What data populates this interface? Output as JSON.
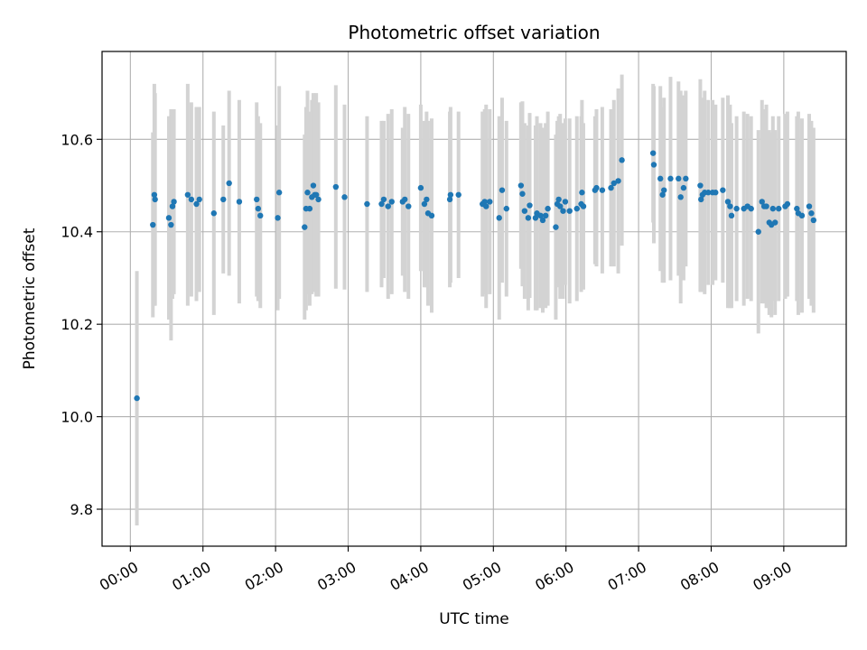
{
  "chart_data": {
    "type": "scatter",
    "title": "Photometric offset variation",
    "xlabel": "UTC time",
    "ylabel": "Photometric offset",
    "x_unit": "hours",
    "xlim": [
      -0.39,
      9.86
    ],
    "ylim": [
      9.72,
      10.79
    ],
    "grid": true,
    "x_ticks": [
      0,
      1,
      2,
      3,
      4,
      5,
      6,
      7,
      8,
      9
    ],
    "x_tick_labels": [
      "00:00",
      "01:00",
      "02:00",
      "03:00",
      "04:00",
      "05:00",
      "06:00",
      "07:00",
      "08:00",
      "09:00"
    ],
    "y_ticks": [
      9.8,
      10.0,
      10.2,
      10.4,
      10.6
    ],
    "y_tick_labels": [
      "9.8",
      "10.0",
      "10.2",
      "10.4",
      "10.6"
    ],
    "point_color": "#1f77b4",
    "errorbar_color": "#d3d3d3",
    "series": [
      {
        "name": "offset",
        "x": [
          0.09,
          0.31,
          0.33,
          0.34,
          0.53,
          0.56,
          0.58,
          0.6,
          0.79,
          0.84,
          0.91,
          0.95,
          1.15,
          1.28,
          1.36,
          1.5,
          1.74,
          1.76,
          1.79,
          2.03,
          2.05,
          2.4,
          2.42,
          2.44,
          2.47,
          2.5,
          2.52,
          2.54,
          2.56,
          2.59,
          2.83,
          2.95,
          3.26,
          3.46,
          3.49,
          3.55,
          3.6,
          3.75,
          3.78,
          3.83,
          4.0,
          4.05,
          4.08,
          4.1,
          4.15,
          4.4,
          4.41,
          4.52,
          4.85,
          4.88,
          4.9,
          4.95,
          5.08,
          5.12,
          5.18,
          5.38,
          5.4,
          5.43,
          5.48,
          5.5,
          5.58,
          5.6,
          5.65,
          5.68,
          5.72,
          5.75,
          5.86,
          5.88,
          5.9,
          5.92,
          5.96,
          5.99,
          6.05,
          6.15,
          6.21,
          6.22,
          6.24,
          6.4,
          6.42,
          6.5,
          6.62,
          6.66,
          6.72,
          6.77,
          7.2,
          7.21,
          7.3,
          7.33,
          7.35,
          7.44,
          7.55,
          7.58,
          7.62,
          7.65,
          7.85,
          7.86,
          7.88,
          7.91,
          7.96,
          8.02,
          8.06,
          8.16,
          8.23,
          8.26,
          8.28,
          8.35,
          8.45,
          8.5,
          8.55,
          8.65,
          8.7,
          8.73,
          8.76,
          8.8,
          8.83,
          8.85,
          8.88,
          8.93,
          9.02,
          9.05,
          9.18,
          9.2,
          9.25,
          9.35,
          9.38,
          9.41
        ],
        "y": [
          10.04,
          10.415,
          10.48,
          10.47,
          10.43,
          10.415,
          10.455,
          10.465,
          10.48,
          10.47,
          10.46,
          10.47,
          10.44,
          10.47,
          10.505,
          10.465,
          10.47,
          10.45,
          10.435,
          10.43,
          10.485,
          10.41,
          10.45,
          10.485,
          10.45,
          10.475,
          10.5,
          10.48,
          10.48,
          10.47,
          10.497,
          10.475,
          10.46,
          10.46,
          10.47,
          10.455,
          10.465,
          10.465,
          10.47,
          10.455,
          10.495,
          10.46,
          10.47,
          10.44,
          10.435,
          10.47,
          10.48,
          10.48,
          10.46,
          10.465,
          10.455,
          10.465,
          10.43,
          10.49,
          10.45,
          10.5,
          10.482,
          10.445,
          10.43,
          10.457,
          10.43,
          10.44,
          10.435,
          10.425,
          10.435,
          10.45,
          10.41,
          10.46,
          10.47,
          10.455,
          10.445,
          10.465,
          10.445,
          10.45,
          10.46,
          10.485,
          10.455,
          10.49,
          10.495,
          10.49,
          10.495,
          10.505,
          10.51,
          10.555,
          10.57,
          10.545,
          10.515,
          10.48,
          10.49,
          10.515,
          10.515,
          10.475,
          10.495,
          10.515,
          10.5,
          10.47,
          10.48,
          10.485,
          10.485,
          10.485,
          10.485,
          10.49,
          10.465,
          10.455,
          10.435,
          10.45,
          10.45,
          10.455,
          10.45,
          10.4,
          10.465,
          10.455,
          10.455,
          10.42,
          10.415,
          10.45,
          10.42,
          10.45,
          10.455,
          10.46,
          10.45,
          10.44,
          10.435,
          10.455,
          10.44,
          10.425
        ],
        "err": [
          0.275,
          0.2,
          0.24,
          0.23,
          0.22,
          0.25,
          0.2,
          0.2,
          0.24,
          0.21,
          0.21,
          0.2,
          0.22,
          0.16,
          0.2,
          0.22,
          0.21,
          0.2,
          0.2,
          0.2,
          0.23,
          0.2,
          0.22,
          0.22,
          0.21,
          0.21,
          0.2,
          0.21,
          0.22,
          0.21,
          0.22,
          0.2,
          0.19,
          0.18,
          0.17,
          0.2,
          0.2,
          0.16,
          0.2,
          0.2,
          0.18,
          0.18,
          0.19,
          0.2,
          0.21,
          0.19,
          0.19,
          0.18,
          0.2,
          0.2,
          0.22,
          0.2,
          0.22,
          0.2,
          0.19,
          0.18,
          0.2,
          0.19,
          0.2,
          0.2,
          0.2,
          0.21,
          0.2,
          0.2,
          0.2,
          0.21,
          0.2,
          0.18,
          0.18,
          0.2,
          0.19,
          0.18,
          0.2,
          0.2,
          0.19,
          0.2,
          0.18,
          0.16,
          0.17,
          0.18,
          0.17,
          0.18,
          0.2,
          0.185,
          0.15,
          0.17,
          0.2,
          0.19,
          0.2,
          0.22,
          0.21,
          0.23,
          0.2,
          0.19,
          0.23,
          0.2,
          0.21,
          0.22,
          0.2,
          0.2,
          0.19,
          0.2,
          0.23,
          0.22,
          0.2,
          0.2,
          0.21,
          0.2,
          0.2,
          0.22,
          0.22,
          0.21,
          0.22,
          0.2,
          0.2,
          0.2,
          0.2,
          0.2,
          0.2,
          0.2,
          0.2,
          0.22,
          0.21,
          0.2,
          0.2,
          0.2
        ]
      }
    ]
  }
}
